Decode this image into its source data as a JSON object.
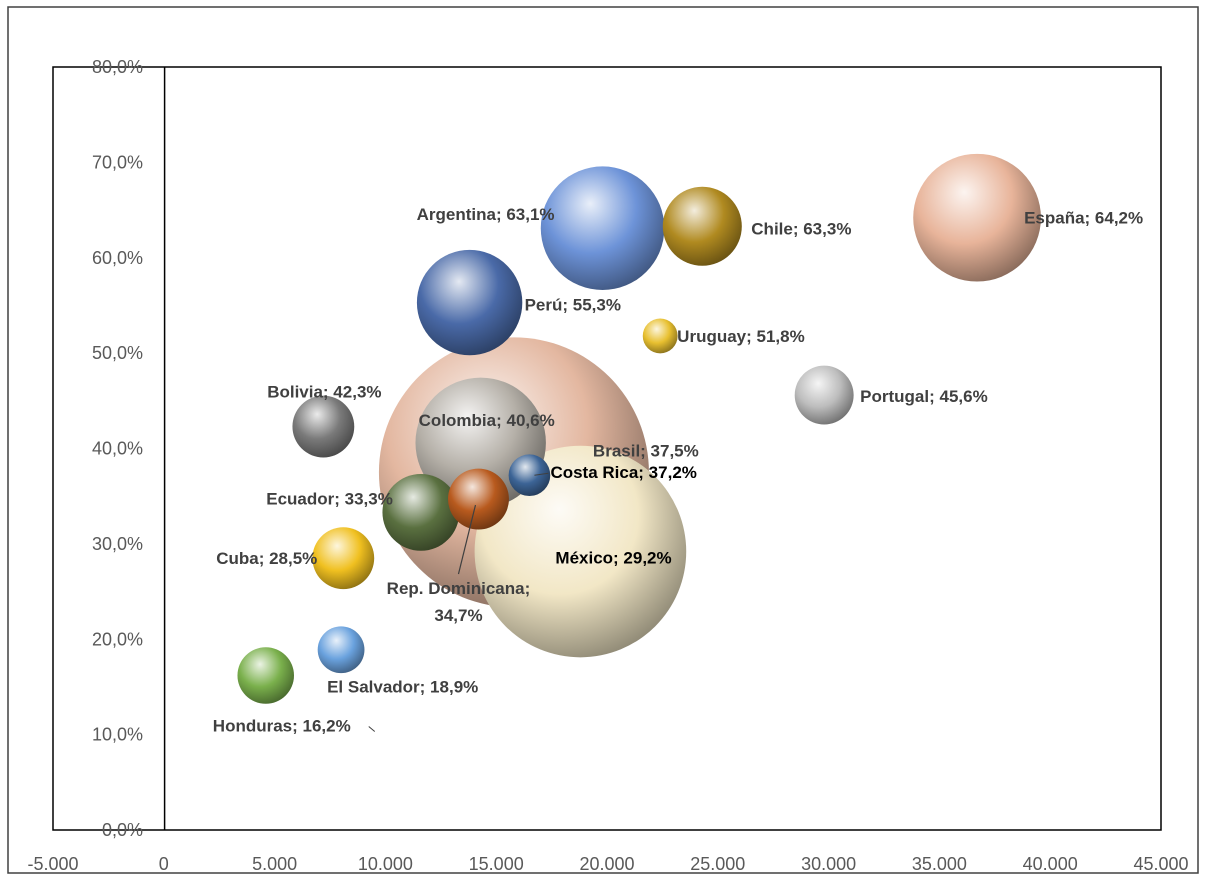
{
  "chart_data": {
    "type": "bubble",
    "title": "",
    "xlabel": "",
    "ylabel": "",
    "xlim": [
      -5000,
      45000
    ],
    "ylim": [
      0,
      0.8
    ],
    "x_ticks": [
      "-5.000",
      "0",
      "5.000",
      "10.000",
      "15.000",
      "20.000",
      "25.000",
      "30.000",
      "35.000",
      "40.000",
      "45.000"
    ],
    "y_ticks": [
      "0,0%",
      "10,0%",
      "20,0%",
      "30,0%",
      "40,0%",
      "50,0%",
      "60,0%",
      "70,0%",
      "80,0%"
    ],
    "grid": false,
    "legend": "none",
    "points": [
      {
        "label": "España; 64,2%",
        "x": 36700,
        "y": 0.642,
        "size": 47,
        "color": "#e8b49a"
      },
      {
        "label": "Chile; 63,3%",
        "x": 24300,
        "y": 0.633,
        "size": 18,
        "color": "#b08a20"
      },
      {
        "label": "Argentina; 63,1%",
        "x": 19800,
        "y": 0.631,
        "size": 44,
        "color": "#6d93d8"
      },
      {
        "label": "Perú; 55,3%",
        "x": 13800,
        "y": 0.553,
        "size": 32,
        "color": "#4a6aa8"
      },
      {
        "label": "Uruguay; 51,8%",
        "x": 22400,
        "y": 0.518,
        "size": 3.5,
        "color": "#e8c030"
      },
      {
        "label": "Portugal; 45,6%",
        "x": 29800,
        "y": 0.456,
        "size": 10,
        "color": "#bdbdbd"
      },
      {
        "label": "Bolivia; 42,3%",
        "x": 7200,
        "y": 0.423,
        "size": 11,
        "color": "#7a7a7a"
      },
      {
        "label": "Colombia; 40,6%",
        "x": 14300,
        "y": 0.406,
        "size": 49,
        "color": "#b5b0a8"
      },
      {
        "label": "Brasil; 37,5%",
        "x": 15800,
        "y": 0.375,
        "size": 210,
        "color": "#e3b7a0"
      },
      {
        "label": "Costa Rica; 37,2%",
        "x": 16500,
        "y": 0.372,
        "size": 5,
        "color": "#3c6496"
      },
      {
        "label": "Rep. Dominicana; 34,7%",
        "x": 14200,
        "y": 0.347,
        "size": 10.7,
        "color": "#b85a1e"
      },
      {
        "label": "Ecuador; 33,3%",
        "x": 11600,
        "y": 0.333,
        "size": 17,
        "color": "#5a7040"
      },
      {
        "label": "México; 29,2%",
        "x": 18800,
        "y": 0.292,
        "size": 129,
        "color": "#f2e7c6"
      },
      {
        "label": "Cuba; 28,5%",
        "x": 8100,
        "y": 0.285,
        "size": 11,
        "color": "#f0c020"
      },
      {
        "label": "El Salvador; 18,9%",
        "x": 8000,
        "y": 0.189,
        "size": 6.3,
        "color": "#6aa2de"
      },
      {
        "label": "Honduras; 16,2%",
        "x": 4600,
        "y": 0.162,
        "size": 9.2,
        "color": "#7ab04c"
      }
    ]
  }
}
